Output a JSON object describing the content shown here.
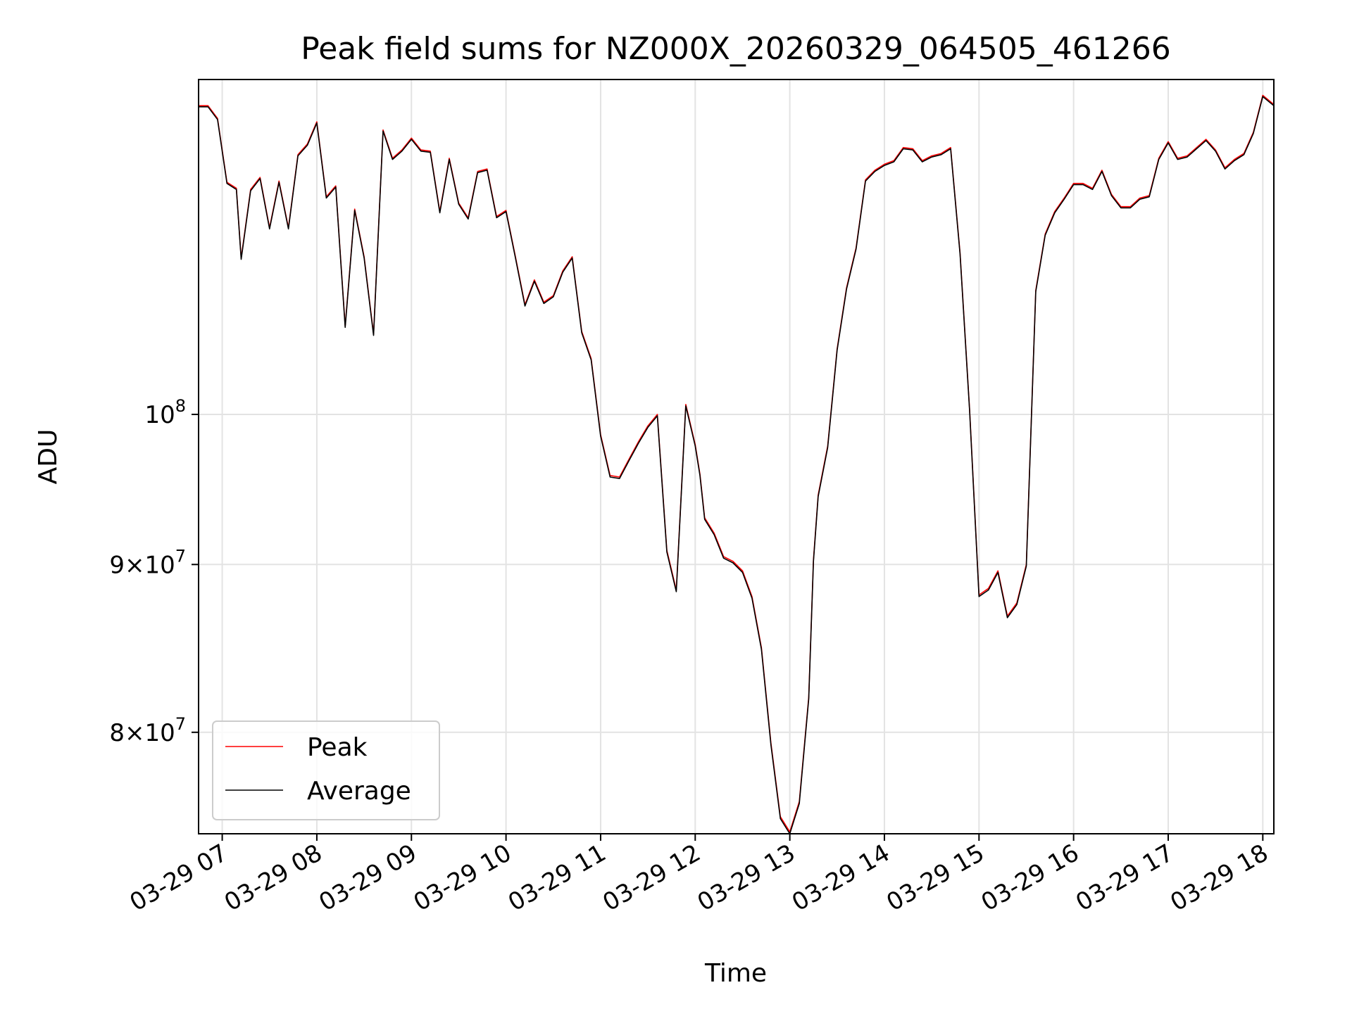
{
  "chart_data": {
    "type": "line",
    "title": "Peak field sums for NZ000X_20260329_064505_461266",
    "xlabel": "Time",
    "ylabel": "ADU",
    "yscale": "log",
    "grid": true,
    "legend_placement": "lower-left",
    "x_unit": "hours",
    "xlim": [
      "2026-03-29 06:45",
      "2026-03-29 18:07"
    ],
    "ylim": [
      74500000,
      126500000
    ],
    "x_ticks": [
      {
        "value": "2026-03-29 07:00",
        "label": "03-29 07"
      },
      {
        "value": "2026-03-29 08:00",
        "label": "03-29 08"
      },
      {
        "value": "2026-03-29 09:00",
        "label": "03-29 09"
      },
      {
        "value": "2026-03-29 10:00",
        "label": "03-29 10"
      },
      {
        "value": "2026-03-29 11:00",
        "label": "03-29 11"
      },
      {
        "value": "2026-03-29 12:00",
        "label": "03-29 12"
      },
      {
        "value": "2026-03-29 13:00",
        "label": "03-29 13"
      },
      {
        "value": "2026-03-29 14:00",
        "label": "03-29 14"
      },
      {
        "value": "2026-03-29 15:00",
        "label": "03-29 15"
      },
      {
        "value": "2026-03-29 16:00",
        "label": "03-29 16"
      },
      {
        "value": "2026-03-29 17:00",
        "label": "03-29 17"
      },
      {
        "value": "2026-03-29 18:00",
        "label": "03-29 18"
      }
    ],
    "y_ticks": [
      {
        "value": 80000000,
        "mantissa": "8",
        "exponent": "7"
      },
      {
        "value": 90000000,
        "mantissa": "9",
        "exponent": "7"
      },
      {
        "value": 100000000,
        "mantissa": "",
        "exponent": "8"
      }
    ],
    "series": [
      {
        "name": "Peak",
        "color": "#ff0000",
        "x": [
          "2026-03-29 06:45",
          "2026-03-29 06:51",
          "2026-03-29 06:57",
          "2026-03-29 07:03",
          "2026-03-29 07:09",
          "2026-03-29 07:12",
          "2026-03-29 07:18",
          "2026-03-29 07:24",
          "2026-03-29 07:30",
          "2026-03-29 07:36",
          "2026-03-29 07:42",
          "2026-03-29 07:48",
          "2026-03-29 07:54",
          "2026-03-29 08:00",
          "2026-03-29 08:06",
          "2026-03-29 08:12",
          "2026-03-29 08:18",
          "2026-03-29 08:24",
          "2026-03-29 08:30",
          "2026-03-29 08:36",
          "2026-03-29 08:42",
          "2026-03-29 08:48",
          "2026-03-29 08:54",
          "2026-03-29 09:00",
          "2026-03-29 09:06",
          "2026-03-29 09:12",
          "2026-03-29 09:18",
          "2026-03-29 09:24",
          "2026-03-29 09:30",
          "2026-03-29 09:36",
          "2026-03-29 09:42",
          "2026-03-29 09:48",
          "2026-03-29 09:54",
          "2026-03-29 10:00",
          "2026-03-29 10:06",
          "2026-03-29 10:12",
          "2026-03-29 10:18",
          "2026-03-29 10:24",
          "2026-03-29 10:30",
          "2026-03-29 10:36",
          "2026-03-29 10:42",
          "2026-03-29 10:48",
          "2026-03-29 10:54",
          "2026-03-29 11:00",
          "2026-03-29 11:06",
          "2026-03-29 11:12",
          "2026-03-29 11:18",
          "2026-03-29 11:24",
          "2026-03-29 11:30",
          "2026-03-29 11:36",
          "2026-03-29 11:42",
          "2026-03-29 11:48",
          "2026-03-29 11:54",
          "2026-03-29 12:00",
          "2026-03-29 12:03",
          "2026-03-29 12:06",
          "2026-03-29 12:12",
          "2026-03-29 12:18",
          "2026-03-29 12:24",
          "2026-03-29 12:30",
          "2026-03-29 12:36",
          "2026-03-29 12:42",
          "2026-03-29 12:48",
          "2026-03-29 12:54",
          "2026-03-29 13:00",
          "2026-03-29 13:06",
          "2026-03-29 13:12",
          "2026-03-29 13:15",
          "2026-03-29 13:18",
          "2026-03-29 13:24",
          "2026-03-29 13:30",
          "2026-03-29 13:36",
          "2026-03-29 13:42",
          "2026-03-29 13:48",
          "2026-03-29 13:54",
          "2026-03-29 14:00",
          "2026-03-29 14:06",
          "2026-03-29 14:12",
          "2026-03-29 14:18",
          "2026-03-29 14:24",
          "2026-03-29 14:30",
          "2026-03-29 14:36",
          "2026-03-29 14:42",
          "2026-03-29 14:48",
          "2026-03-29 14:54",
          "2026-03-29 15:00",
          "2026-03-29 15:06",
          "2026-03-29 15:12",
          "2026-03-29 15:18",
          "2026-03-29 15:24",
          "2026-03-29 15:30",
          "2026-03-29 15:36",
          "2026-03-29 15:42",
          "2026-03-29 15:48",
          "2026-03-29 15:54",
          "2026-03-29 16:00",
          "2026-03-29 16:06",
          "2026-03-29 16:12",
          "2026-03-29 16:18",
          "2026-03-29 16:24",
          "2026-03-29 16:30",
          "2026-03-29 16:36",
          "2026-03-29 16:42",
          "2026-03-29 16:48",
          "2026-03-29 16:54",
          "2026-03-29 17:00",
          "2026-03-29 17:06",
          "2026-03-29 17:12",
          "2026-03-29 17:18",
          "2026-03-29 17:24",
          "2026-03-29 17:30",
          "2026-03-29 17:36",
          "2026-03-29 17:42",
          "2026-03-29 17:48",
          "2026-03-29 17:54",
          "2026-03-29 18:00",
          "2026-03-29 18:07"
        ],
        "y": [
          124200000,
          124200000,
          123100000,
          117700000,
          117200000,
          111600000,
          117100000,
          118100000,
          114000000,
          117800000,
          114000000,
          120000000,
          120900000,
          122800000,
          116500000,
          117400000,
          106400000,
          115500000,
          111700000,
          105800000,
          122100000,
          119700000,
          120400000,
          121400000,
          120400000,
          120300000,
          115300000,
          119700000,
          116000000,
          114800000,
          118600000,
          118800000,
          114900000,
          115400000,
          111700000,
          108000000,
          109900000,
          108200000,
          108700000,
          110600000,
          111700000,
          106000000,
          104000000,
          98600000,
          95800000,
          95700000,
          96900000,
          98100000,
          99200000,
          100000000,
          90900000,
          88400000,
          100700000,
          97900000,
          95900000,
          93000000,
          92000000,
          90500000,
          90200000,
          89600000,
          88000000,
          84900000,
          79400000,
          75400000,
          74600000,
          76200000,
          82000000,
          90300000,
          94500000,
          97800000,
          104700000,
          109300000,
          112400000,
          117900000,
          118700000,
          119200000,
          119500000,
          120600000,
          120500000,
          119500000,
          119900000,
          120100000,
          120600000,
          112000000,
          100400000,
          88100000,
          88500000,
          89600000,
          86800000,
          87600000,
          90000000,
          109100000,
          113500000,
          115300000,
          116400000,
          117600000,
          117600000,
          117200000,
          118700000,
          116700000,
          115700000,
          115700000,
          116400000,
          116600000,
          119700000,
          121100000,
          119700000,
          119900000,
          120600000,
          121300000,
          120400000,
          118900000,
          119600000,
          120100000,
          121900000,
          125100000,
          124300000
        ]
      },
      {
        "name": "Average",
        "color": "#000000",
        "x": [
          "2026-03-29 06:45",
          "2026-03-29 06:51",
          "2026-03-29 06:57",
          "2026-03-29 07:03",
          "2026-03-29 07:09",
          "2026-03-29 07:12",
          "2026-03-29 07:18",
          "2026-03-29 07:24",
          "2026-03-29 07:30",
          "2026-03-29 07:36",
          "2026-03-29 07:42",
          "2026-03-29 07:48",
          "2026-03-29 07:54",
          "2026-03-29 08:00",
          "2026-03-29 08:06",
          "2026-03-29 08:12",
          "2026-03-29 08:18",
          "2026-03-29 08:24",
          "2026-03-29 08:30",
          "2026-03-29 08:36",
          "2026-03-29 08:42",
          "2026-03-29 08:48",
          "2026-03-29 08:54",
          "2026-03-29 09:00",
          "2026-03-29 09:06",
          "2026-03-29 09:12",
          "2026-03-29 09:18",
          "2026-03-29 09:24",
          "2026-03-29 09:30",
          "2026-03-29 09:36",
          "2026-03-29 09:42",
          "2026-03-29 09:48",
          "2026-03-29 09:54",
          "2026-03-29 10:00",
          "2026-03-29 10:06",
          "2026-03-29 10:12",
          "2026-03-29 10:18",
          "2026-03-29 10:24",
          "2026-03-29 10:30",
          "2026-03-29 10:36",
          "2026-03-29 10:42",
          "2026-03-29 10:48",
          "2026-03-29 10:54",
          "2026-03-29 11:00",
          "2026-03-29 11:06",
          "2026-03-29 11:12",
          "2026-03-29 11:18",
          "2026-03-29 11:24",
          "2026-03-29 11:30",
          "2026-03-29 11:36",
          "2026-03-29 11:42",
          "2026-03-29 11:48",
          "2026-03-29 11:54",
          "2026-03-29 12:00",
          "2026-03-29 12:03",
          "2026-03-29 12:06",
          "2026-03-29 12:12",
          "2026-03-29 12:18",
          "2026-03-29 12:24",
          "2026-03-29 12:30",
          "2026-03-29 12:36",
          "2026-03-29 12:42",
          "2026-03-29 12:48",
          "2026-03-29 12:54",
          "2026-03-29 13:00",
          "2026-03-29 13:06",
          "2026-03-29 13:12",
          "2026-03-29 13:15",
          "2026-03-29 13:18",
          "2026-03-29 13:24",
          "2026-03-29 13:30",
          "2026-03-29 13:36",
          "2026-03-29 13:42",
          "2026-03-29 13:48",
          "2026-03-29 13:54",
          "2026-03-29 14:00",
          "2026-03-29 14:06",
          "2026-03-29 14:12",
          "2026-03-29 14:18",
          "2026-03-29 14:24",
          "2026-03-29 14:30",
          "2026-03-29 14:36",
          "2026-03-29 14:42",
          "2026-03-29 14:48",
          "2026-03-29 14:54",
          "2026-03-29 15:00",
          "2026-03-29 15:06",
          "2026-03-29 15:12",
          "2026-03-29 15:18",
          "2026-03-29 15:24",
          "2026-03-29 15:30",
          "2026-03-29 15:36",
          "2026-03-29 15:42",
          "2026-03-29 15:48",
          "2026-03-29 15:54",
          "2026-03-29 16:00",
          "2026-03-29 16:06",
          "2026-03-29 16:12",
          "2026-03-29 16:18",
          "2026-03-29 16:24",
          "2026-03-29 16:30",
          "2026-03-29 16:36",
          "2026-03-29 16:42",
          "2026-03-29 16:48",
          "2026-03-29 16:54",
          "2026-03-29 17:00",
          "2026-03-29 17:06",
          "2026-03-29 17:12",
          "2026-03-29 17:18",
          "2026-03-29 17:24",
          "2026-03-29 17:30",
          "2026-03-29 17:36",
          "2026-03-29 17:42",
          "2026-03-29 17:48",
          "2026-03-29 17:54",
          "2026-03-29 18:00",
          "2026-03-29 18:07"
        ],
        "y": [
          124100000,
          124100000,
          123000000,
          117600000,
          117100000,
          111500000,
          117000000,
          118000000,
          113900000,
          117700000,
          113900000,
          119900000,
          120800000,
          122700000,
          116400000,
          117300000,
          106300000,
          115400000,
          111600000,
          105700000,
          122000000,
          119600000,
          120300000,
          121300000,
          120300000,
          120200000,
          115200000,
          119600000,
          115900000,
          114700000,
          118500000,
          118700000,
          114800000,
          115300000,
          111600000,
          107900000,
          109800000,
          108100000,
          108600000,
          110500000,
          111600000,
          105900000,
          103900000,
          98500000,
          95700000,
          95600000,
          96800000,
          98000000,
          99100000,
          99900000,
          90800000,
          88300000,
          100600000,
          97800000,
          95800000,
          92900000,
          91900000,
          90400000,
          90100000,
          89500000,
          87900000,
          84800000,
          79300000,
          75300000,
          74500000,
          76100000,
          81900000,
          90200000,
          94400000,
          97700000,
          104600000,
          109200000,
          112300000,
          117800000,
          118600000,
          119100000,
          119400000,
          120500000,
          120400000,
          119400000,
          119800000,
          120000000,
          120500000,
          111900000,
          100300000,
          88000000,
          88400000,
          89500000,
          86700000,
          87500000,
          89900000,
          109000000,
          113400000,
          115200000,
          116300000,
          117500000,
          117500000,
          117100000,
          118600000,
          116600000,
          115600000,
          115600000,
          116300000,
          116500000,
          119600000,
          121000000,
          119600000,
          119800000,
          120500000,
          121200000,
          120300000,
          118800000,
          119500000,
          120000000,
          121800000,
          125000000,
          124200000
        ]
      }
    ]
  }
}
